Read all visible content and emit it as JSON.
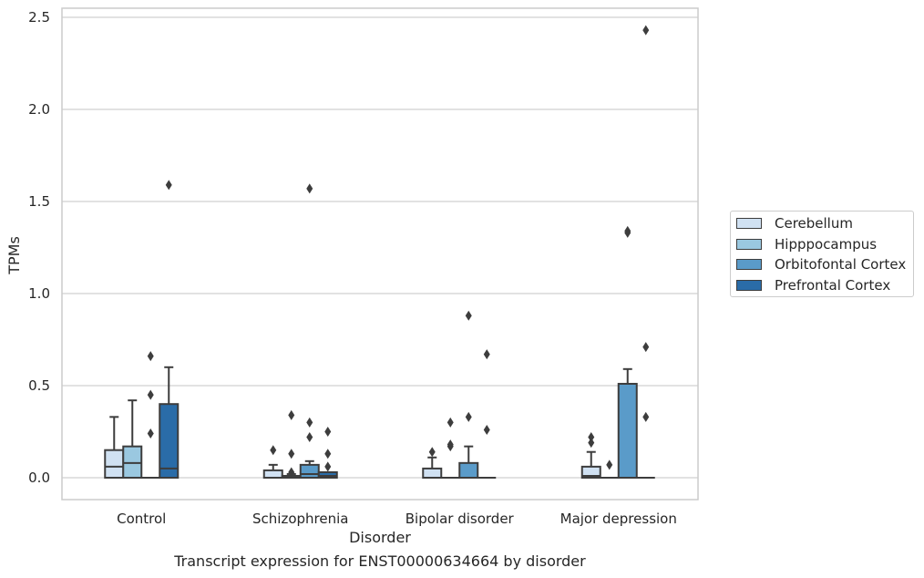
{
  "chart_data": {
    "type": "boxplot",
    "title": "",
    "caption": "Transcript expression for ENST00000634664 by disorder",
    "xlabel": "Disorder",
    "ylabel": "TPMs",
    "ylim": [
      -0.12,
      2.56
    ],
    "yticks": [
      0.0,
      0.5,
      1.0,
      1.5,
      2.0,
      2.5
    ],
    "ytick_labels": [
      "0.0",
      "0.5",
      "1.0",
      "1.5",
      "2.0",
      "2.5"
    ],
    "grid": "horizontal",
    "legend_position": "right",
    "categories": [
      "Control",
      "Schizophrenia",
      "Bipolar disorder",
      "Major depression"
    ],
    "series": [
      {
        "name": "Cerebellum",
        "color": "#d0e1f2",
        "boxes": [
          {
            "q1": 0.0,
            "median": 0.06,
            "q3": 0.15,
            "whisker_low": 0.0,
            "whisker_high": 0.33,
            "outliers": []
          },
          {
            "q1": 0.0,
            "median": 0.0,
            "q3": 0.04,
            "whisker_low": 0.0,
            "whisker_high": 0.07,
            "outliers": [
              0.15
            ]
          },
          {
            "q1": 0.0,
            "median": 0.0,
            "q3": 0.05,
            "whisker_low": 0.0,
            "whisker_high": 0.11,
            "outliers": [
              0.14
            ]
          },
          {
            "q1": 0.0,
            "median": 0.01,
            "q3": 0.06,
            "whisker_low": 0.0,
            "whisker_high": 0.14,
            "outliers": [
              0.19,
              0.22
            ]
          }
        ]
      },
      {
        "name": "Hipppocampus",
        "color": "#9ac8e0",
        "boxes": [
          {
            "q1": 0.0,
            "median": 0.08,
            "q3": 0.17,
            "whisker_low": 0.0,
            "whisker_high": 0.42,
            "outliers": []
          },
          {
            "q1": 0.0,
            "median": 0.0,
            "q3": 0.01,
            "whisker_low": 0.0,
            "whisker_high": 0.02,
            "outliers": [
              0.03,
              0.13,
              0.34
            ]
          },
          {
            "q1": 0.0,
            "median": 0.0,
            "q3": 0.0,
            "whisker_low": 0.0,
            "whisker_high": 0.0,
            "outliers": [
              0.17,
              0.18,
              0.3
            ]
          },
          {
            "q1": 0.0,
            "median": 0.0,
            "q3": 0.0,
            "whisker_low": 0.0,
            "whisker_high": 0.0,
            "outliers": [
              0.07
            ]
          }
        ]
      },
      {
        "name": "Orbitofontal Cortex",
        "color": "#5a9bc9",
        "boxes": [
          {
            "q1": 0.0,
            "median": 0.0,
            "q3": 0.0,
            "whisker_low": 0.0,
            "whisker_high": 0.0,
            "outliers": [
              0.24,
              0.45,
              0.66
            ]
          },
          {
            "q1": 0.0,
            "median": 0.02,
            "q3": 0.07,
            "whisker_low": 0.0,
            "whisker_high": 0.09,
            "outliers": [
              0.22,
              0.3,
              1.57
            ]
          },
          {
            "q1": 0.0,
            "median": 0.0,
            "q3": 0.08,
            "whisker_low": 0.0,
            "whisker_high": 0.17,
            "outliers": [
              0.33,
              0.88
            ]
          },
          {
            "q1": 0.0,
            "median": 0.0,
            "q3": 0.51,
            "whisker_low": 0.0,
            "whisker_high": 0.59,
            "outliers": [
              1.33,
              1.34
            ]
          }
        ]
      },
      {
        "name": "Prefrontal Cortex",
        "color": "#2a6ca8",
        "boxes": [
          {
            "q1": 0.0,
            "median": 0.05,
            "q3": 0.4,
            "whisker_low": 0.0,
            "whisker_high": 0.6,
            "outliers": [
              1.59
            ]
          },
          {
            "q1": 0.0,
            "median": 0.01,
            "q3": 0.03,
            "whisker_low": 0.0,
            "whisker_high": 0.03,
            "outliers": [
              0.06,
              0.13,
              0.25
            ]
          },
          {
            "q1": 0.0,
            "median": 0.0,
            "q3": 0.0,
            "whisker_low": 0.0,
            "whisker_high": 0.0,
            "outliers": [
              0.26,
              0.67
            ]
          },
          {
            "q1": 0.0,
            "median": 0.0,
            "q3": 0.0,
            "whisker_low": 0.0,
            "whisker_high": 0.0,
            "outliers": [
              0.33,
              0.71,
              2.43
            ]
          }
        ]
      }
    ]
  },
  "style": {
    "line_color": "#3d3d3d",
    "grid_color": "#d0d0d0",
    "frame_color": "#cccccc"
  }
}
